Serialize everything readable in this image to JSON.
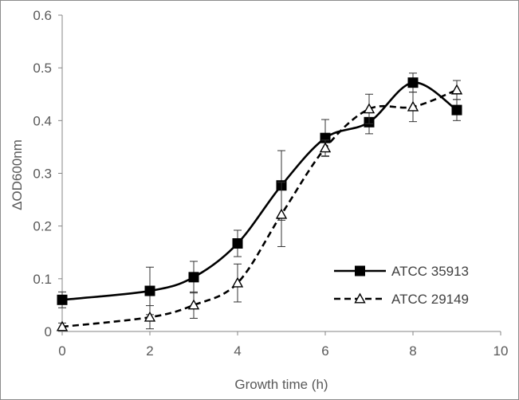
{
  "chart_data": {
    "type": "line",
    "title": "",
    "xlabel": "Growth time (h)",
    "ylabel": "ΔOD600nm",
    "xlim": [
      0,
      10
    ],
    "ylim": [
      0,
      0.6
    ],
    "xticks": [
      0,
      2,
      4,
      6,
      8,
      10
    ],
    "yticks": [
      0,
      0.1,
      0.2,
      0.3,
      0.4,
      0.5,
      0.6
    ],
    "xtick_labels": [
      "0",
      "2",
      "4",
      "6",
      "8",
      "10"
    ],
    "ytick_labels": [
      "0",
      "0.1",
      "0.2",
      "0.3",
      "0.4",
      "0.5",
      "0.6"
    ],
    "grid": false,
    "legend_position": "lower-right",
    "series": [
      {
        "name": "ATCC 35913",
        "style": "solid",
        "marker": "filled-square",
        "color": "#000000",
        "x": [
          0,
          2,
          3,
          4,
          5,
          6,
          7,
          8,
          9
        ],
        "y": [
          0.06,
          0.077,
          0.103,
          0.167,
          0.277,
          0.367,
          0.397,
          0.472,
          0.42
        ],
        "err": [
          0.015,
          0.045,
          0.03,
          0.025,
          0.066,
          0.035,
          0.022,
          0.018,
          0.02
        ]
      },
      {
        "name": "ATCC 29149",
        "style": "dashed",
        "marker": "open-triangle",
        "color": "#000000",
        "x": [
          0,
          2,
          3,
          4,
          5,
          6,
          7,
          8,
          9
        ],
        "y": [
          0.009,
          0.027,
          0.05,
          0.092,
          0.222,
          0.348,
          0.422,
          0.426,
          0.458
        ],
        "err": [
          0.007,
          0.022,
          0.025,
          0.036,
          0.061,
          0.015,
          0.028,
          0.028,
          0.018
        ]
      }
    ]
  }
}
